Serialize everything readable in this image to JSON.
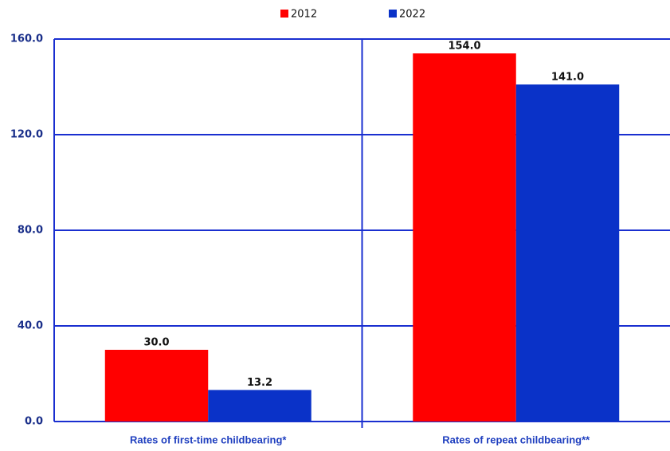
{
  "chart_data": {
    "type": "bar",
    "categories": [
      "Rates of first-time childbearing*",
      "Rates of repeat childbearing**"
    ],
    "series": [
      {
        "name": "2012",
        "color": "#ff0000",
        "values": [
          30,
          154
        ],
        "value_labels": [
          "30.0",
          "154.0"
        ]
      },
      {
        "name": "2022",
        "color": "#0a32c8",
        "values": [
          13.2,
          141
        ],
        "value_labels": [
          "13.2",
          "141.0"
        ]
      }
    ],
    "ylim": [
      0,
      160
    ],
    "yticks": [
      {
        "value": 0,
        "label": "0.0"
      },
      {
        "value": 40,
        "label": "40.0"
      },
      {
        "value": 80,
        "label": "80.0"
      },
      {
        "value": 120,
        "label": "120.0"
      },
      {
        "value": 160,
        "label": "160.0"
      }
    ],
    "grid": true,
    "legend": "top"
  }
}
